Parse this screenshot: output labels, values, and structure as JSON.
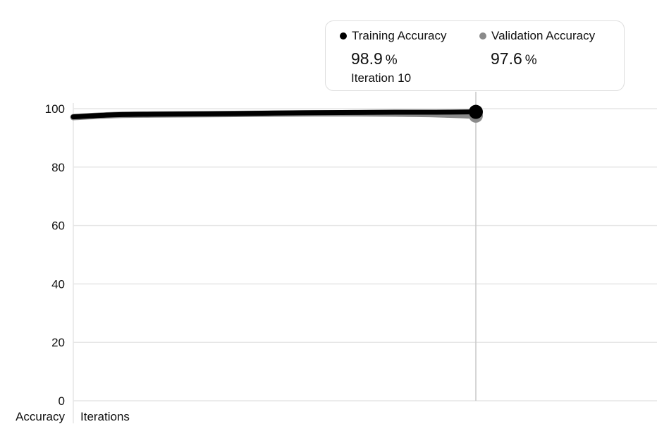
{
  "colors": {
    "training": "#000000",
    "validation": "#8a8a8a",
    "grid": "#e6e6e6",
    "cursor": "#c8c8c8",
    "tooltip_border": "#dedede"
  },
  "tooltip": {
    "training_label": "Training Accuracy",
    "training_value": "98.9",
    "validation_label": "Validation Accuracy",
    "validation_value": "97.6",
    "unit": "%",
    "iteration_label": "Iteration 10"
  },
  "chart_data": {
    "type": "line",
    "title": "",
    "ylabel": "Accuracy",
    "xlabel": "Iterations",
    "ylim": [
      0,
      100
    ],
    "xlim": [
      0,
      10
    ],
    "yticks": [
      0,
      20,
      40,
      60,
      80,
      100
    ],
    "grid": true,
    "legend_placement": "top-right",
    "cursor_x": 10,
    "x": [
      0,
      1,
      2,
      3,
      4,
      5,
      6,
      7,
      8,
      9,
      10
    ],
    "series": [
      {
        "name": "Training Accuracy",
        "color": "#000000",
        "values": [
          97.2,
          97.9,
          98.1,
          98.2,
          98.3,
          98.5,
          98.6,
          98.7,
          98.8,
          98.8,
          98.9
        ]
      },
      {
        "name": "Validation Accuracy",
        "color": "#8a8a8a",
        "values": [
          97.1,
          97.8,
          98.0,
          98.1,
          98.2,
          98.3,
          98.4,
          98.4,
          98.3,
          98.1,
          97.6
        ]
      }
    ]
  }
}
